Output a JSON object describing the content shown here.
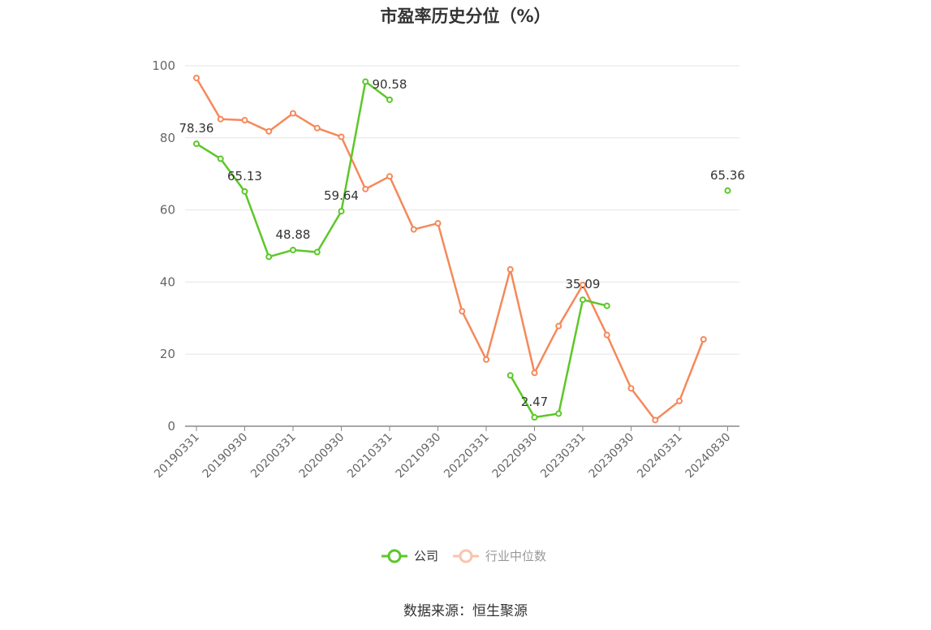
{
  "chart_data": {
    "type": "line",
    "title": "市盈率历史分位（%）",
    "ylim": [
      0,
      100
    ],
    "yticks": [
      0,
      20,
      40,
      60,
      80,
      100
    ],
    "x": [
      "20190331",
      "20190630",
      "20190930",
      "20191231",
      "20200331",
      "20200630",
      "20200930",
      "20201231",
      "20210331",
      "20210630",
      "20210930",
      "20211231",
      "20220331",
      "20220630",
      "20220930",
      "20221231",
      "20230331",
      "20230630",
      "20230930",
      "20231231",
      "20240331",
      "20240630",
      "20240830"
    ],
    "xtick_labels": [
      "20190331",
      "20190930",
      "20200331",
      "20200930",
      "20210331",
      "20210930",
      "20220331",
      "20220930",
      "20230331",
      "20230930",
      "20240331",
      "20240830"
    ],
    "grid": true,
    "legend_position": "bottom",
    "series": [
      {
        "name": "公司",
        "color": "#5cc728",
        "values": [
          78.36,
          74.2,
          65.13,
          47.0,
          48.88,
          48.3,
          59.64,
          95.6,
          90.58,
          null,
          null,
          null,
          null,
          14.1,
          2.47,
          3.5,
          35.09,
          33.4,
          null,
          null,
          null,
          null,
          65.36
        ],
        "labels": [
          "78.36",
          null,
          "65.13",
          null,
          "48.88",
          null,
          "59.64",
          null,
          "90.58",
          null,
          null,
          null,
          null,
          null,
          "2.47",
          null,
          "35.09",
          null,
          null,
          null,
          null,
          null,
          "65.36"
        ]
      },
      {
        "name": "行业中位数",
        "color": "#f5895a",
        "values": [
          96.6,
          85.2,
          84.9,
          81.8,
          86.8,
          82.7,
          80.3,
          65.8,
          69.3,
          54.6,
          56.3,
          31.9,
          18.5,
          43.5,
          14.8,
          27.8,
          39.2,
          25.3,
          10.5,
          1.7,
          7.0,
          24.1,
          null
        ]
      }
    ]
  },
  "legend": {
    "company_label": "公司",
    "industry_label": "行业中位数"
  },
  "source": "数据来源：恒生聚源"
}
